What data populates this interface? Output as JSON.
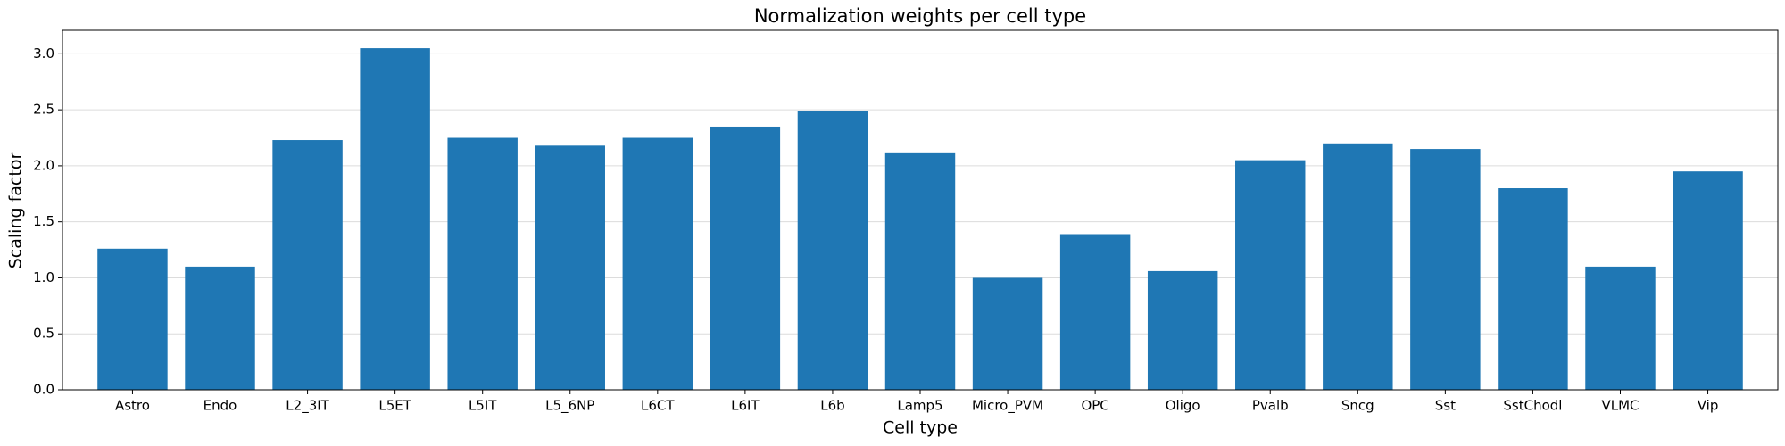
{
  "chart_data": {
    "type": "bar",
    "title": "Normalization weights per cell type",
    "x_label": "Cell type",
    "y_label": "Scaling factor",
    "categories": [
      "Astro",
      "Endo",
      "L2_3IT",
      "L5ET",
      "L5IT",
      "L5_6NP",
      "L6CT",
      "L6IT",
      "L6b",
      "Lamp5",
      "Micro_PVM",
      "OPC",
      "Oligo",
      "Pvalb",
      "Sncg",
      "Sst",
      "SstChodl",
      "VLMC",
      "Vip"
    ],
    "values": [
      1.26,
      1.1,
      2.23,
      3.05,
      2.25,
      2.18,
      2.25,
      2.35,
      2.49,
      2.12,
      1.0,
      1.39,
      1.06,
      2.05,
      2.2,
      2.15,
      1.8,
      1.1,
      1.95
    ],
    "color": "#1f77b4",
    "ylim": [
      0,
      3.21
    ],
    "yticks": [
      {
        "value": 0,
        "label": "0.0"
      },
      0.5,
      {
        "value": 1,
        "label": "1.0"
      },
      1.5,
      {
        "value": 2,
        "label": "2.0"
      },
      2.5,
      {
        "value": 3,
        "label": "3.0"
      }
    ],
    "grid": true
  }
}
